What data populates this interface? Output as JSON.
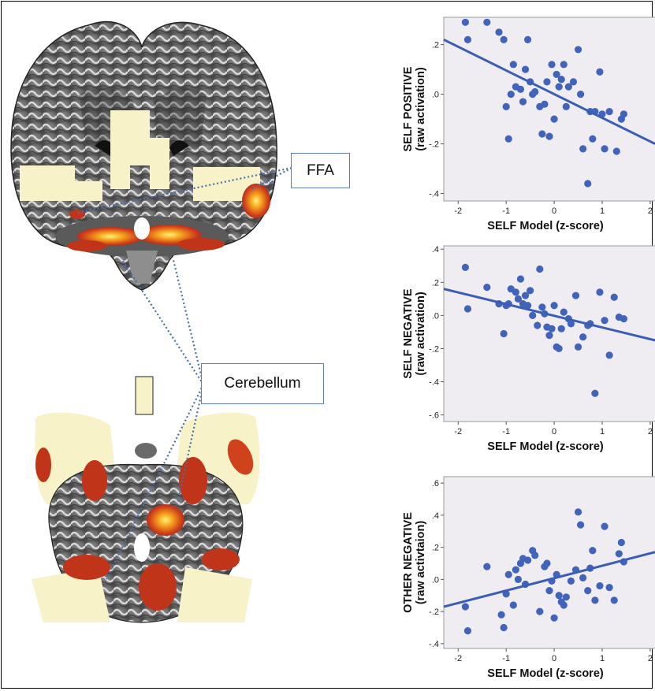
{
  "callouts": {
    "ffa": "FFA",
    "cerebellum": "Cerebellum"
  },
  "colors": {
    "plot_background": "#f0edf2",
    "point": "#4163b9",
    "fit_line": "#3a5db5",
    "callout_border": "#5b7fb5",
    "mask_overlay": "#f8f2c8",
    "activation_low": "#c0341a",
    "activation_high": "#fff27a"
  },
  "chart_data": [
    {
      "type": "scatter",
      "ylabel": [
        "SELF POSITIVE",
        "(raw activation)"
      ],
      "xlabel": "SELF Model (z-score)",
      "xlim": [
        -2.3,
        2.1
      ],
      "ylim": [
        -0.43,
        0.31
      ],
      "xticks": [
        -2,
        -1,
        0,
        1,
        2
      ],
      "xtick_labels": [
        "-2",
        "-1",
        "0",
        "1",
        "2"
      ],
      "yticks": [
        0.2,
        0.0,
        -0.2,
        -0.4
      ],
      "ytick_labels": [
        ".2",
        ".0",
        "-.2",
        "-.4"
      ],
      "fit": {
        "x": [
          -2.3,
          2.1
        ],
        "y": [
          0.22,
          -0.2
        ]
      },
      "x": [
        -1.85,
        -1.8,
        -1.4,
        -1.15,
        -1.05,
        -1.0,
        -0.95,
        -0.9,
        -0.85,
        -0.8,
        -0.7,
        -0.65,
        -0.6,
        -0.55,
        -0.5,
        -0.45,
        -0.4,
        -0.3,
        -0.25,
        -0.2,
        -0.15,
        -0.1,
        -0.05,
        0.0,
        0.05,
        0.1,
        0.15,
        0.2,
        0.25,
        0.3,
        0.4,
        0.5,
        0.55,
        0.6,
        0.7,
        0.75,
        0.8,
        0.85,
        0.95,
        1.0,
        1.05,
        1.15,
        1.3,
        1.4,
        1.45
      ],
      "y": [
        0.29,
        0.22,
        0.29,
        0.25,
        0.22,
        -0.05,
        -0.18,
        0.0,
        0.12,
        0.03,
        0.02,
        -0.03,
        0.1,
        0.22,
        0.05,
        0.0,
        0.01,
        -0.05,
        -0.16,
        -0.04,
        0.05,
        -0.17,
        0.12,
        -0.1,
        0.08,
        0.03,
        0.06,
        0.12,
        -0.05,
        0.03,
        0.05,
        0.18,
        0.0,
        -0.22,
        -0.36,
        -0.07,
        -0.18,
        -0.07,
        0.09,
        -0.08,
        -0.22,
        -0.07,
        -0.23,
        -0.1,
        -0.08
      ]
    },
    {
      "type": "scatter",
      "ylabel": [
        "SELF NEGATIVE",
        "(raw activation)"
      ],
      "xlabel": "SELF Model (z-score)",
      "xlim": [
        -2.3,
        2.1
      ],
      "ylim": [
        -0.64,
        0.42
      ],
      "xticks": [
        -2,
        -1,
        0,
        1,
        2
      ],
      "xtick_labels": [
        "-2",
        "-1",
        "0",
        "1",
        "2"
      ],
      "yticks": [
        0.4,
        0.2,
        0.0,
        -0.2,
        -0.4,
        -0.6
      ],
      "ytick_labels": [
        ".4",
        ".2",
        ".0",
        "-.2",
        "-.4",
        "-.6"
      ],
      "fit": {
        "x": [
          -2.3,
          2.1
        ],
        "y": [
          0.16,
          -0.15
        ]
      },
      "x": [
        -1.85,
        -1.8,
        -1.4,
        -1.15,
        -1.05,
        -1.0,
        -0.95,
        -0.9,
        -0.8,
        -0.75,
        -0.7,
        -0.65,
        -0.6,
        -0.55,
        -0.5,
        -0.45,
        -0.35,
        -0.3,
        -0.25,
        -0.2,
        -0.15,
        -0.1,
        -0.05,
        0.0,
        0.05,
        0.1,
        0.15,
        0.2,
        0.3,
        0.35,
        0.45,
        0.5,
        0.6,
        0.7,
        0.75,
        0.85,
        0.95,
        1.05,
        1.15,
        1.25,
        1.35,
        1.45
      ],
      "y": [
        0.29,
        0.04,
        0.17,
        0.07,
        -0.11,
        0.06,
        0.07,
        0.16,
        0.14,
        0.1,
        0.22,
        0.07,
        0.12,
        0.06,
        0.15,
        0.0,
        -0.06,
        0.28,
        0.05,
        0.01,
        -0.07,
        -0.12,
        -0.08,
        0.06,
        -0.19,
        -0.2,
        -0.08,
        0.02,
        -0.02,
        -0.05,
        0.12,
        -0.19,
        -0.13,
        -0.06,
        -0.05,
        -0.47,
        0.14,
        -0.03,
        -0.24,
        0.11,
        -0.01,
        -0.02
      ]
    },
    {
      "type": "scatter",
      "ylabel": [
        "OTHER NEGATIVE",
        "(raw activtaion)"
      ],
      "xlabel": "SELF Model (z-score)",
      "xlim": [
        -2.3,
        2.1
      ],
      "ylim": [
        -0.43,
        0.64
      ],
      "xticks": [
        -2,
        -1,
        0,
        1,
        2
      ],
      "xtick_labels": [
        "-2",
        "-1",
        "0",
        "1",
        "2"
      ],
      "yticks": [
        0.6,
        0.4,
        0.2,
        0.0,
        -0.2,
        -0.4
      ],
      "ytick_labels": [
        ".6",
        ".4",
        ".2",
        ".0",
        "-.2",
        "-.4"
      ],
      "fit": {
        "x": [
          -2.3,
          2.1
        ],
        "y": [
          -0.17,
          0.17
        ]
      },
      "x": [
        -1.85,
        -1.8,
        -1.4,
        -1.1,
        -1.05,
        -1.0,
        -0.95,
        -0.85,
        -0.8,
        -0.75,
        -0.7,
        -0.65,
        -0.6,
        -0.55,
        -0.45,
        -0.4,
        -0.3,
        -0.2,
        -0.15,
        -0.1,
        -0.05,
        0.0,
        0.05,
        0.1,
        0.15,
        0.2,
        0.25,
        0.35,
        0.45,
        0.5,
        0.55,
        0.6,
        0.7,
        0.75,
        0.8,
        0.85,
        0.95,
        1.05,
        1.15,
        1.25,
        1.35,
        1.4,
        1.45
      ],
      "y": [
        -0.17,
        -0.32,
        0.08,
        -0.22,
        -0.3,
        -0.09,
        0.03,
        -0.16,
        0.06,
        0.0,
        0.1,
        0.13,
        -0.03,
        0.12,
        0.18,
        0.15,
        -0.2,
        0.08,
        0.1,
        -0.07,
        -0.01,
        -0.24,
        0.03,
        -0.1,
        -0.14,
        -0.16,
        -0.11,
        -0.01,
        0.06,
        0.42,
        0.34,
        0.01,
        -0.07,
        0.07,
        0.18,
        -0.13,
        -0.04,
        0.33,
        -0.05,
        -0.13,
        0.16,
        0.23,
        0.11
      ]
    }
  ]
}
